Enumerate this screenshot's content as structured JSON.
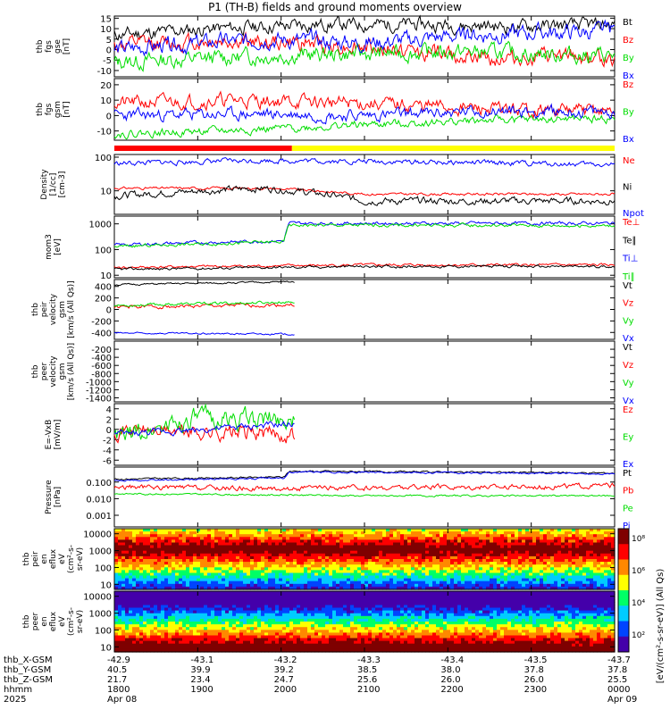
{
  "title": "P1 (TH-B) fields and ground moments overview",
  "chart_data": {
    "type": "line",
    "title": "P1 (TH-B) fields and ground moments overview",
    "x_range": [
      "1800",
      "0000"
    ],
    "x_ticks": [
      "1800",
      "1900",
      "2000",
      "2100",
      "2200",
      "2300",
      "0000"
    ],
    "x_dates": {
      "first": "Apr 08",
      "last": "Apr 09"
    },
    "x_label_rows": [
      {
        "label": "thb_X-GSM",
        "values": [
          "-42.9",
          "-43.1",
          "-43.2",
          "-43.3",
          "-43.4",
          "-43.5",
          "-43.7"
        ]
      },
      {
        "label": "thb_Y-GSM",
        "values": [
          "40.5",
          "39.9",
          "39.2",
          "38.5",
          "38.0",
          "37.8",
          "37.8"
        ]
      },
      {
        "label": "thb_Z-GSM",
        "values": [
          "21.7",
          "23.4",
          "24.7",
          "25.6",
          "26.0",
          "26.0",
          "25.5"
        ]
      },
      {
        "label": "hhmm",
        "values": [
          "1800",
          "1900",
          "2000",
          "2100",
          "2200",
          "2300",
          "0000"
        ]
      },
      {
        "label": "2025",
        "values": [
          "Apr 08",
          "",
          "",
          "",
          "",
          "",
          "Apr 09"
        ]
      }
    ],
    "panels": [
      {
        "ylabel": [
          "thb",
          "fgs",
          "gse",
          "[nT]"
        ],
        "scale": "linear",
        "ylim": [
          -13,
          16
        ],
        "yticks": [
          "15",
          "10",
          "5",
          "0",
          "-5",
          "-10"
        ],
        "yvals": [
          15,
          10,
          5,
          0,
          -5,
          -10
        ],
        "series": [
          {
            "name": "Bt",
            "color": "#000000",
            "levels": [
              [
                0,
                7
              ],
              [
                0.2,
                10
              ],
              [
                0.4,
                12
              ],
              [
                0.6,
                12
              ],
              [
                0.8,
                11
              ],
              [
                1,
                12
              ]
            ],
            "noise": 2.5,
            "seed": 11
          },
          {
            "name": "Bz",
            "color": "#ff0000",
            "levels": [
              [
                0,
                2
              ],
              [
                0.2,
                4
              ],
              [
                0.4,
                3
              ],
              [
                0.55,
                0
              ],
              [
                0.75,
                -4
              ],
              [
                1,
                -4
              ]
            ],
            "noise": 3,
            "seed": 12
          },
          {
            "name": "By",
            "color": "#00dd00",
            "levels": [
              [
                0,
                -6
              ],
              [
                0.3,
                -3
              ],
              [
                0.5,
                -2
              ],
              [
                0.7,
                -1
              ],
              [
                1,
                -3
              ]
            ],
            "noise": 3,
            "seed": 13
          },
          {
            "name": "Bx",
            "color": "#0000ff",
            "levels": [
              [
                0,
                0
              ],
              [
                0.3,
                5
              ],
              [
                0.5,
                3
              ],
              [
                0.7,
                7
              ],
              [
                1,
                9
              ]
            ],
            "noise": 3,
            "seed": 14
          }
        ]
      },
      {
        "ylabel": [
          "thb",
          "fgs",
          "gsm",
          "[nT]"
        ],
        "scale": "linear",
        "ylim": [
          -16,
          24
        ],
        "yticks": [
          "20",
          "10",
          "0",
          "-10"
        ],
        "yvals": [
          20,
          10,
          0,
          -10
        ],
        "series": [
          {
            "name": "Bz",
            "color": "#ff0000",
            "levels": [
              [
                0,
                8
              ],
              [
                0.25,
                10
              ],
              [
                0.5,
                8
              ],
              [
                0.75,
                4
              ],
              [
                1,
                3
              ]
            ],
            "noise": 3.5,
            "seed": 21
          },
          {
            "name": "By",
            "color": "#00dd00",
            "levels": [
              [
                0,
                -12
              ],
              [
                0.3,
                -9
              ],
              [
                0.5,
                -6
              ],
              [
                0.75,
                -3
              ],
              [
                1,
                -2
              ]
            ],
            "noise": 2,
            "seed": 22
          },
          {
            "name": "Bx",
            "color": "#0000ff",
            "levels": [
              [
                0,
                0
              ],
              [
                0.3,
                1
              ],
              [
                0.5,
                0
              ],
              [
                0.75,
                3
              ],
              [
                1,
                2
              ]
            ],
            "noise": 3,
            "seed": 23
          }
        ]
      },
      {
        "ylabel": [
          "Density",
          "[1/cc]",
          "[cm-3]"
        ],
        "scale": "log",
        "ylim": [
          2,
          120
        ],
        "yticks": [
          "100",
          "10"
        ],
        "yvals": [
          100,
          10
        ],
        "series": [
          {
            "name": "Ne",
            "color": "#ff0000",
            "levels": [
              [
                0,
                12
              ],
              [
                0.3,
                12
              ],
              [
                0.5,
                8
              ],
              [
                1,
                8
              ]
            ],
            "noise": 0.03,
            "seed": 31
          },
          {
            "name": "Ni",
            "color": "#000000",
            "levels": [
              [
                0,
                7
              ],
              [
                0.3,
                12
              ],
              [
                0.5,
                5
              ],
              [
                1,
                5
              ]
            ],
            "noise": 0.08,
            "seed": 32
          },
          {
            "name": "Npot",
            "color": "#0000ff",
            "levels": [
              [
                0,
                65
              ],
              [
                0.3,
                80
              ],
              [
                0.5,
                75
              ],
              [
                1,
                60
              ]
            ],
            "noise": 0.06,
            "seed": 33
          }
        ]
      },
      {
        "ylabel": [
          "mom3",
          "[eV]"
        ],
        "scale": "log",
        "ylim": [
          8,
          2000
        ],
        "yticks": [
          "1000",
          "100",
          "10"
        ],
        "yvals": [
          1000,
          100,
          10
        ],
        "series": [
          {
            "name": "Te⊥",
            "color": "#ff0000",
            "levels": [
              [
                0,
                20
              ],
              [
                0.5,
                25
              ],
              [
                1,
                25
              ]
            ],
            "noise": 0.04,
            "seed": 41
          },
          {
            "name": "Te∥",
            "color": "#000000",
            "levels": [
              [
                0,
                17
              ],
              [
                0.5,
                22
              ],
              [
                1,
                22
              ]
            ],
            "noise": 0.04,
            "seed": 42
          },
          {
            "name": "Ti⊥",
            "color": "#0000ff",
            "levels": [
              [
                0,
                150
              ],
              [
                0.34,
                220
              ],
              [
                0.35,
                1050
              ],
              [
                1,
                1050
              ]
            ],
            "noise": 0.05,
            "seed": 43
          },
          {
            "name": "Ti∥",
            "color": "#00dd00",
            "levels": [
              [
                0,
                130
              ],
              [
                0.34,
                200
              ],
              [
                0.35,
                900
              ],
              [
                1,
                850
              ]
            ],
            "noise": 0.05,
            "seed": 44
          }
        ]
      },
      {
        "ylabel": [
          "thb",
          "peir",
          "velocity",
          "gsm",
          "[km/s (All Qs)]"
        ],
        "scale": "linear",
        "ylim": [
          -520,
          520
        ],
        "yticks": [
          "400",
          "200",
          "0",
          "-200",
          "-400"
        ],
        "yvals": [
          400,
          200,
          0,
          -200,
          -400
        ],
        "xmax": 0.36,
        "series": [
          {
            "name": "Vt",
            "color": "#000000",
            "levels": [
              [
                0,
                430
              ],
              [
                0.36,
                480
              ]
            ],
            "noise": 12,
            "seed": 51
          },
          {
            "name": "Vz",
            "color": "#ff0000",
            "levels": [
              [
                0,
                40
              ],
              [
                0.36,
                80
              ]
            ],
            "noise": 25,
            "seed": 52
          },
          {
            "name": "Vy",
            "color": "#00dd00",
            "levels": [
              [
                0,
                70
              ],
              [
                0.36,
                130
              ]
            ],
            "noise": 20,
            "seed": 53
          },
          {
            "name": "Vx",
            "color": "#0000ff",
            "levels": [
              [
                0,
                -410
              ],
              [
                0.36,
                -430
              ]
            ],
            "noise": 12,
            "seed": 54
          }
        ]
      },
      {
        "ylabel": [
          "thb",
          "peer",
          "velocity",
          "gsm",
          "[km/s (All Qs)]"
        ],
        "scale": "linear",
        "ylim": [
          -1500,
          0
        ],
        "yticks": [
          "-200",
          "-400",
          "-600",
          "-800",
          "-1000",
          "-1200",
          "-1400"
        ],
        "yvals": [
          -200,
          -400,
          -600,
          -800,
          -1000,
          -1200,
          -1400
        ],
        "xmax": 0,
        "series": [
          {
            "name": "Vt",
            "color": "#000000",
            "levels": [],
            "noise": 0,
            "seed": 61
          },
          {
            "name": "Vz",
            "color": "#ff0000",
            "levels": [],
            "noise": 0,
            "seed": 62
          },
          {
            "name": "Vy",
            "color": "#00dd00",
            "levels": [],
            "noise": 0,
            "seed": 63
          },
          {
            "name": "Vx",
            "color": "#0000ff",
            "levels": [],
            "noise": 0,
            "seed": 64
          }
        ]
      },
      {
        "ylabel": [
          "E=-VxB",
          "[mV/m]"
        ],
        "scale": "linear",
        "ylim": [
          -7,
          5
        ],
        "yticks": [
          "4",
          "2",
          "0",
          "-2",
          "-4",
          "-6"
        ],
        "yvals": [
          4,
          2,
          0,
          -2,
          -4,
          -6
        ],
        "xmax": 0.36,
        "series": [
          {
            "name": "Ez",
            "color": "#ff0000",
            "levels": [
              [
                0,
                0
              ],
              [
                0.36,
                -1
              ]
            ],
            "noise": 1.2,
            "seed": 71
          },
          {
            "name": "Ey",
            "color": "#00dd00",
            "levels": [
              [
                0,
                -2
              ],
              [
                0.15,
                2
              ],
              [
                0.36,
                2
              ]
            ],
            "noise": 1.5,
            "seed": 72
          },
          {
            "name": "Ex",
            "color": "#0000ff",
            "levels": [
              [
                0,
                -1
              ],
              [
                0.36,
                1
              ]
            ],
            "noise": 0.5,
            "seed": 73
          }
        ]
      },
      {
        "ylabel": [
          "Pressure",
          "[nPa]"
        ],
        "scale": "log",
        "ylim": [
          0.0002,
          0.8
        ],
        "yticks": [
          "0.100",
          "0.010",
          "0.001"
        ],
        "yvals": [
          0.1,
          0.01,
          0.001
        ],
        "series": [
          {
            "name": "Pt",
            "color": "#000000",
            "levels": [
              [
                0,
                0.15
              ],
              [
                0.34,
                0.2
              ],
              [
                0.35,
                0.45
              ],
              [
                1,
                0.35
              ]
            ],
            "noise": 0.04,
            "seed": 81
          },
          {
            "name": "Pb",
            "color": "#ff0000",
            "levels": [
              [
                0,
                0.05
              ],
              [
                0.35,
                0.04
              ],
              [
                1,
                0.06
              ]
            ],
            "noise": 0.12,
            "seed": 82
          },
          {
            "name": "Pe",
            "color": "#00dd00",
            "levels": [
              [
                0,
                0.02
              ],
              [
                0.5,
                0.015
              ],
              [
                1,
                0.015
              ]
            ],
            "noise": 0.04,
            "seed": 83
          },
          {
            "name": "Pi",
            "color": "#0000ff",
            "levels": [
              [
                0,
                0.12
              ],
              [
                0.34,
                0.17
              ],
              [
                0.35,
                0.4
              ],
              [
                1,
                0.32
              ]
            ],
            "noise": 0.04,
            "seed": 84
          }
        ]
      }
    ],
    "spectrograms": [
      {
        "ylabel": [
          "thb",
          "peir",
          "en",
          "eflux",
          "eV",
          "(cm²-s-",
          "sr-eV)"
        ],
        "scale": "log",
        "ylim": [
          5,
          20000
        ],
        "yticks": [
          "10000",
          "1000",
          "100",
          "10"
        ],
        "yvals": [
          10000,
          1000,
          100,
          10
        ],
        "peak_energy": 1200,
        "seed": 91
      },
      {
        "ylabel": [
          "thb",
          "peer",
          "en",
          "eflux",
          "eV",
          "(cm²-s-",
          "sr-eV)"
        ],
        "scale": "log",
        "ylim": [
          5,
          20000
        ],
        "yticks": [
          "10000",
          "1000",
          "100",
          "10"
        ],
        "yvals": [
          10000,
          1000,
          100,
          10
        ],
        "peak_energy": 10,
        "seed": 92
      }
    ],
    "colorbar": {
      "label": "[eV/(cm²-s-sr-eV)] (All Qs)",
      "ticks": [
        "10⁸",
        "10⁶",
        "10⁴",
        "10²"
      ],
      "colors": [
        "#7f0000",
        "#ff0000",
        "#ff8800",
        "#ffff00",
        "#00ff66",
        "#00ccff",
        "#0044ff",
        "#4400aa"
      ]
    },
    "mode_bar": [
      {
        "end_fraction": 0.355,
        "color": "#ff0000"
      },
      {
        "end_fraction": 1.0,
        "color": "#ffff00"
      }
    ]
  }
}
